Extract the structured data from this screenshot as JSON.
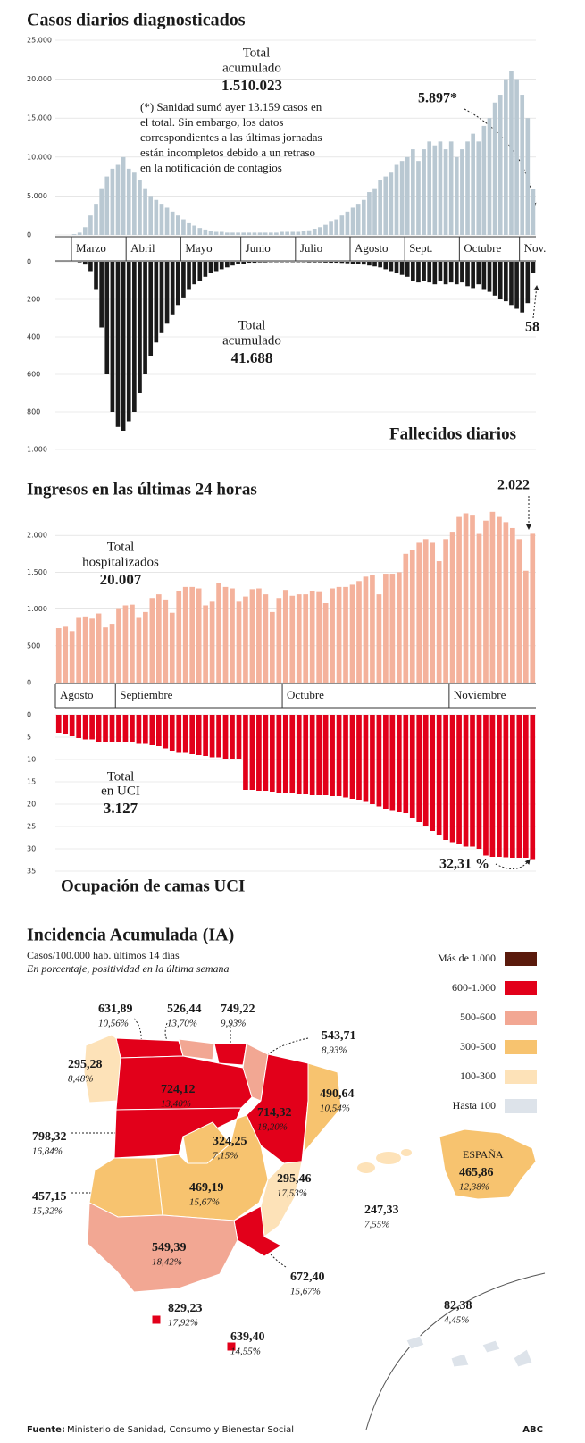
{
  "chart_data": [
    {
      "type": "bar",
      "title": "Casos diarios diagnosticados",
      "color": "#b9c8d2",
      "ylim": [
        0,
        25000
      ],
      "yticks": [
        0,
        {
          "value": 5000,
          "label": "5.000"
        },
        {
          "value": 10000,
          "label": "10.000"
        },
        {
          "value": 15000,
          "label": "15.000"
        },
        {
          "value": 20000,
          "label": "20.000"
        },
        {
          "value": 25000,
          "label": "25.000"
        }
      ],
      "categories": [
        "Marzo",
        null,
        null,
        null,
        null,
        null,
        null,
        null,
        null,
        null,
        "Abril",
        null,
        null,
        null,
        null,
        null,
        null,
        null,
        null,
        null,
        "Mayo",
        null,
        null,
        null,
        null,
        null,
        null,
        null,
        null,
        null,
        null,
        "Junio",
        null,
        null,
        null,
        null,
        null,
        null,
        null,
        null,
        null,
        "Julio",
        null,
        null,
        null,
        null,
        null,
        null,
        null,
        null,
        null,
        "Agosto",
        null,
        null,
        null,
        null,
        null,
        null,
        null,
        null,
        null,
        "Sept.",
        null,
        null,
        null,
        null,
        null,
        null,
        null,
        null,
        null,
        "Octubre",
        null,
        null,
        null,
        null,
        null,
        null,
        null,
        null,
        null,
        null,
        "Nov.",
        null,
        null
      ],
      "values": [
        100,
        300,
        1000,
        2500,
        4000,
        6000,
        7500,
        8500,
        9000,
        10000,
        8500,
        8000,
        7000,
        6000,
        5000,
        4500,
        4000,
        3500,
        3000,
        2500,
        2000,
        1500,
        1200,
        900,
        700,
        500,
        400,
        400,
        300,
        300,
        300,
        300,
        300,
        300,
        300,
        300,
        300,
        300,
        400,
        400,
        400,
        400,
        500,
        600,
        800,
        1000,
        1300,
        1800,
        2000,
        2500,
        3000,
        3500,
        4000,
        4500,
        5500,
        6000,
        7000,
        7500,
        8000,
        9000,
        9500,
        10000,
        11000,
        9500,
        11000,
        12000,
        11500,
        12000,
        11000,
        12000,
        10000,
        11000,
        12000,
        13000,
        12000,
        14000,
        15000,
        17000,
        18000,
        20000,
        21000,
        20000,
        18000,
        15000,
        5897
      ],
      "annotations": [
        "Total",
        "acumulado",
        "1.510.023",
        "(*) Sanidad sumó ayer 13.159 casos en",
        "el total. Sin embargo, los datos",
        "correspondientes a las últimas jornadas",
        "están incompletos debido a un retraso",
        "en la notificación de contagios",
        "5.897*"
      ]
    },
    {
      "type": "bar",
      "title": "Fallecidos diarios",
      "color": "#1a1a1a",
      "y_inverted": true,
      "ylim": [
        0,
        1000
      ],
      "yticks": [
        0,
        200,
        400,
        600,
        800,
        {
          "value": 1000,
          "label": "1.000"
        }
      ],
      "values": [
        0,
        3,
        15,
        50,
        150,
        350,
        600,
        800,
        880,
        900,
        850,
        800,
        700,
        600,
        500,
        430,
        380,
        330,
        280,
        230,
        190,
        150,
        120,
        100,
        80,
        60,
        50,
        40,
        30,
        20,
        10,
        10,
        5,
        5,
        3,
        3,
        2,
        2,
        2,
        2,
        2,
        2,
        2,
        3,
        3,
        3,
        4,
        5,
        5,
        6,
        8,
        10,
        12,
        15,
        20,
        25,
        30,
        40,
        50,
        60,
        70,
        80,
        100,
        110,
        100,
        110,
        120,
        100,
        120,
        110,
        120,
        110,
        130,
        140,
        120,
        150,
        160,
        180,
        200,
        210,
        230,
        250,
        270,
        220,
        58
      ],
      "annotations": [
        "Total",
        "acumulado",
        "41.688",
        "58"
      ]
    },
    {
      "type": "bar",
      "title": "Ingresos en las últimas 24 horas",
      "color": "#f4b29c",
      "ylim": [
        0,
        2500
      ],
      "yticks": [
        0,
        500,
        {
          "value": 1000,
          "label": "1.000"
        },
        {
          "value": 1500,
          "label": "1.500"
        },
        {
          "value": 2000,
          "label": "2.000"
        }
      ],
      "categories": [
        "Agosto",
        null,
        null,
        null,
        null,
        null,
        null,
        null,
        null,
        "Septiembre",
        null,
        null,
        null,
        null,
        null,
        null,
        null,
        null,
        null,
        null,
        null,
        null,
        null,
        null,
        null,
        null,
        null,
        null,
        null,
        null,
        null,
        null,
        null,
        null,
        "Octubre",
        null,
        null,
        null,
        null,
        null,
        null,
        null,
        null,
        null,
        null,
        null,
        null,
        null,
        null,
        null,
        null,
        null,
        null,
        null,
        null,
        null,
        null,
        null,
        null,
        "Noviembre",
        null,
        null,
        null,
        null,
        null,
        null,
        null,
        null,
        null,
        null,
        null,
        null
      ],
      "values": [
        740,
        760,
        700,
        880,
        900,
        870,
        940,
        750,
        800,
        1000,
        1050,
        1060,
        880,
        960,
        1150,
        1200,
        1130,
        950,
        1250,
        1300,
        1300,
        1280,
        1050,
        1100,
        1350,
        1300,
        1280,
        1100,
        1170,
        1270,
        1280,
        1200,
        960,
        1150,
        1260,
        1180,
        1200,
        1200,
        1250,
        1230,
        1080,
        1280,
        1300,
        1300,
        1330,
        1380,
        1440,
        1460,
        1200,
        1480,
        1480,
        1500,
        1750,
        1800,
        1900,
        1950,
        1900,
        1650,
        1950,
        2050,
        2250,
        2300,
        2280,
        2020,
        2200,
        2320,
        2250,
        2180,
        2100,
        1950,
        1520,
        2022
      ],
      "annotations": [
        "2.022",
        "Total",
        "hospitalizados",
        "20.007"
      ]
    },
    {
      "type": "bar",
      "title": "Ocupación de camas UCI",
      "color": "#e2001a",
      "y_inverted": true,
      "ylim": [
        0,
        35
      ],
      "yticks": [
        0,
        5,
        10,
        15,
        20,
        25,
        30,
        35
      ],
      "values": [
        4,
        4.2,
        4.8,
        5.2,
        5.5,
        5.5,
        6,
        6,
        6,
        6,
        6,
        6.2,
        6.5,
        6.5,
        6.8,
        7,
        7.5,
        8,
        8.5,
        8.5,
        8.8,
        9,
        9.2,
        9.5,
        9.5,
        9.8,
        10,
        10,
        16.8,
        16.8,
        17,
        17,
        17.2,
        17.5,
        17.5,
        17.6,
        17.8,
        17.8,
        18,
        18,
        18,
        18.2,
        18.2,
        18.5,
        18.8,
        19,
        19.5,
        20,
        20.5,
        21,
        21.5,
        21.8,
        22,
        23,
        24,
        25,
        26,
        27,
        28,
        28.5,
        29,
        29.5,
        29.5,
        30,
        31.5,
        31.8,
        31.8,
        31.9,
        32,
        32,
        32,
        32.31
      ],
      "annotations": [
        "Total",
        "en UCI",
        "3.127",
        "32,31 %"
      ]
    }
  ],
  "map": {
    "title": "Incidencia Acumulada (IA)",
    "subtitle": "Casos/100.000 hab. últimos 14 días",
    "note": "En porcentaje, positividad en la última semana",
    "legend": [
      {
        "label": "Más de 1.000",
        "color": "#5a1a0c"
      },
      {
        "label": "600-1.000",
        "color": "#e2001a"
      },
      {
        "label": "500-600",
        "color": "#f2a793"
      },
      {
        "label": "300-500",
        "color": "#f7c36f"
      },
      {
        "label": "100-300",
        "color": "#fde2b8"
      },
      {
        "label": "Hasta 100",
        "color": "#dde3ea"
      }
    ],
    "regions": [
      {
        "value": "631,89",
        "pct": "10,56%",
        "color": "#e2001a"
      },
      {
        "value": "526,44",
        "pct": "13,70%",
        "color": "#f2a793"
      },
      {
        "value": "749,22",
        "pct": "9,93%",
        "color": "#e2001a"
      },
      {
        "value": "543,71",
        "pct": "8,93%",
        "color": "#f2a793"
      },
      {
        "value": "295,28",
        "pct": "8,48%",
        "color": "#fde2b8"
      },
      {
        "value": "724,12",
        "pct": "13,40%",
        "color": "#e2001a"
      },
      {
        "value": "714,32",
        "pct": "18,20%",
        "color": "#e2001a"
      },
      {
        "value": "490,64",
        "pct": "10,54%",
        "color": "#f7c36f"
      },
      {
        "value": "798,32",
        "pct": "16,84%",
        "color": "#e2001a"
      },
      {
        "value": "324,25",
        "pct": "7,15%",
        "color": "#f7c36f"
      },
      {
        "value": "457,15",
        "pct": "15,32%",
        "color": "#f7c36f"
      },
      {
        "value": "469,19",
        "pct": "15,67%",
        "color": "#f7c36f"
      },
      {
        "value": "295,46",
        "pct": "17,53%",
        "color": "#fde2b8"
      },
      {
        "value": "247,33",
        "pct": "7,55%",
        "color": "#fde2b8"
      },
      {
        "value": "672,40",
        "pct": "15,67%",
        "color": "#e2001a"
      },
      {
        "value": "549,39",
        "pct": "18,42%",
        "color": "#f2a793"
      },
      {
        "value": "829,23",
        "pct": "17,92%",
        "color": "#e2001a"
      },
      {
        "value": "639,40",
        "pct": "14,55%",
        "color": "#e2001a"
      },
      {
        "value": "82,38",
        "pct": "4,45%",
        "color": "#dde3ea"
      },
      {
        "name": "ESPAÑA",
        "value": "465,86",
        "pct": "12,38%",
        "color": "#f7c36f"
      }
    ]
  },
  "footer": {
    "source_label": "Fuente:",
    "source": "Ministerio de Sanidad, Consumo y Bienestar Social",
    "brand": "ABC"
  }
}
